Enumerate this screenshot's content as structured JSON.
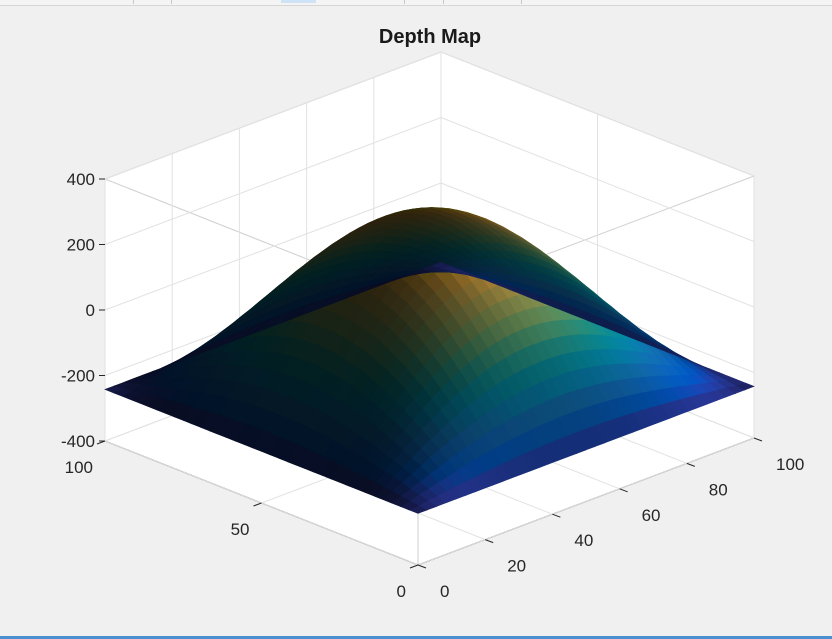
{
  "chart_data": {
    "type": "surface",
    "title": "Depth Map",
    "xlabel": "",
    "ylabel": "",
    "zlabel": "",
    "x_ticks": [
      0,
      20,
      40,
      60,
      80,
      100
    ],
    "y_ticks": [
      0,
      50,
      100
    ],
    "z_ticks": [
      400,
      200,
      0,
      -200,
      -400
    ],
    "xlim": [
      0,
      100
    ],
    "ylim": [
      0,
      100
    ],
    "zlim": [
      -400,
      400
    ],
    "grid": true,
    "colormap": "parula",
    "surface": {
      "function": "dome",
      "center": [
        50,
        50
      ],
      "peak_z": 280,
      "corner_z": -270,
      "grid_size": 101
    }
  }
}
